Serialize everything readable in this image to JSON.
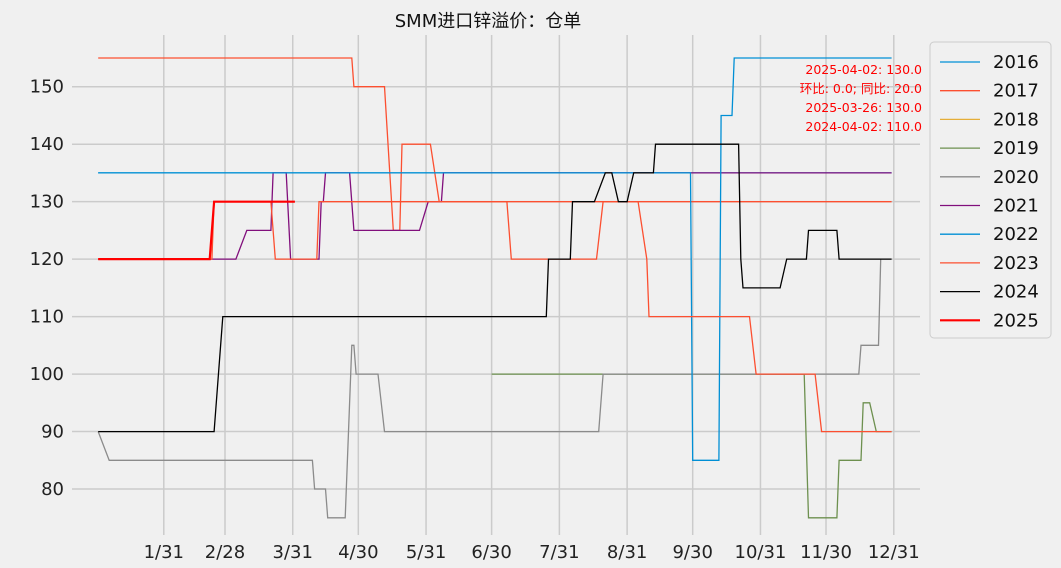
{
  "chart_data": {
    "type": "line",
    "title": "SMM进口锌溢价：仓单",
    "xlabel": "",
    "ylabel": "",
    "x_ticks": [
      "1/31",
      "2/28",
      "3/31",
      "4/30",
      "5/31",
      "6/30",
      "7/31",
      "8/31",
      "9/30",
      "10/31",
      "11/30",
      "12/31"
    ],
    "y_ticks": [
      80,
      90,
      100,
      110,
      120,
      130,
      140,
      150
    ],
    "xlim": [
      -12,
      376
    ],
    "ylim": [
      72,
      159
    ],
    "grid": true,
    "legend_position": "right-outside",
    "annotation": [
      "2025-04-02: 130.0",
      "环比: 0.0; 同比: 20.0",
      "2025-03-26: 130.0",
      "2024-04-02: 110.0"
    ],
    "series": [
      {
        "name": "2016",
        "color": "#008fd5",
        "points": [
          [
            0,
            135
          ],
          [
            363,
            135
          ]
        ]
      },
      {
        "name": "2017",
        "color": "#fc4f30",
        "points": [
          [
            0,
            155
          ],
          [
            116,
            155
          ],
          [
            117,
            150
          ],
          [
            131,
            150
          ],
          [
            135,
            125
          ],
          [
            138,
            125
          ],
          [
            139,
            140
          ],
          [
            152,
            140
          ],
          [
            156,
            130
          ],
          [
            363,
            130
          ]
        ]
      },
      {
        "name": "2018",
        "color": "#e5ae38",
        "points": []
      },
      {
        "name": "2019",
        "color": "#6d904f",
        "points": [
          [
            180,
            100
          ],
          [
            323,
            100
          ],
          [
            325,
            75
          ],
          [
            338,
            75
          ],
          [
            339,
            85
          ],
          [
            349,
            85
          ],
          [
            350,
            95
          ],
          [
            353,
            95
          ],
          [
            356,
            90
          ],
          [
            363,
            90
          ]
        ]
      },
      {
        "name": "2020",
        "color": "#8b8b8b",
        "points": [
          [
            0,
            90
          ],
          [
            5,
            85
          ],
          [
            98,
            85
          ],
          [
            99,
            80
          ],
          [
            104,
            80
          ],
          [
            105,
            75
          ],
          [
            113,
            75
          ],
          [
            116,
            105
          ],
          [
            117,
            105
          ],
          [
            118,
            100
          ],
          [
            128,
            100
          ],
          [
            131,
            90
          ],
          [
            229,
            90
          ],
          [
            231,
            100
          ],
          [
            348,
            100
          ],
          [
            349,
            105
          ],
          [
            357,
            105
          ],
          [
            358,
            120
          ]
        ]
      },
      {
        "name": "2021",
        "color": "#810f7c",
        "points": [
          [
            0,
            120
          ],
          [
            63,
            120
          ],
          [
            68,
            125
          ],
          [
            79,
            125
          ],
          [
            80,
            135
          ],
          [
            86,
            135
          ],
          [
            88,
            120
          ],
          [
            101,
            120
          ],
          [
            102,
            130
          ],
          [
            103,
            130
          ],
          [
            104,
            135
          ],
          [
            115,
            135
          ],
          [
            117,
            125
          ],
          [
            147,
            125
          ],
          [
            151,
            130
          ],
          [
            157,
            130
          ],
          [
            158,
            135
          ],
          [
            363,
            135
          ]
        ]
      },
      {
        "name": "2022",
        "color": "#008fd5",
        "points": [
          [
            0,
            135
          ],
          [
            271,
            135
          ],
          [
            272,
            85
          ],
          [
            284,
            85
          ],
          [
            285,
            145
          ],
          [
            290,
            145
          ],
          [
            291,
            155
          ],
          [
            363,
            155
          ]
        ]
      },
      {
        "name": "2023",
        "color": "#fc4f30",
        "points": [
          [
            0,
            120
          ],
          [
            52,
            120
          ],
          [
            53,
            130
          ],
          [
            79,
            130
          ],
          [
            81,
            120
          ],
          [
            100,
            120
          ],
          [
            101,
            130
          ],
          [
            187,
            130
          ],
          [
            189,
            120
          ],
          [
            206,
            120
          ],
          [
            208,
            120
          ],
          [
            228,
            120
          ],
          [
            231,
            130
          ],
          [
            247,
            130
          ],
          [
            251,
            120
          ],
          [
            252,
            110
          ],
          [
            298,
            110
          ],
          [
            301,
            100
          ],
          [
            328,
            100
          ],
          [
            331,
            90
          ],
          [
            363,
            90
          ]
        ]
      },
      {
        "name": "2024",
        "color": "#000000",
        "points": [
          [
            0,
            90
          ],
          [
            53,
            90
          ],
          [
            57,
            110
          ],
          [
            205,
            110
          ],
          [
            206,
            120
          ],
          [
            216,
            120
          ],
          [
            217,
            130
          ],
          [
            227,
            130
          ],
          [
            232,
            135
          ],
          [
            235,
            135
          ],
          [
            238,
            130
          ],
          [
            242,
            130
          ],
          [
            245,
            135
          ],
          [
            254,
            135
          ],
          [
            255,
            140
          ],
          [
            293,
            140
          ],
          [
            294,
            120
          ],
          [
            295,
            115
          ],
          [
            312,
            115
          ],
          [
            315,
            120
          ],
          [
            324,
            120
          ],
          [
            325,
            125
          ],
          [
            338,
            125
          ],
          [
            339,
            120
          ],
          [
            363,
            120
          ]
        ]
      },
      {
        "name": "2025",
        "color": "#ff0000",
        "points": [
          [
            0,
            120
          ],
          [
            51,
            120
          ],
          [
            53,
            130
          ],
          [
            90,
            130
          ]
        ]
      }
    ]
  }
}
